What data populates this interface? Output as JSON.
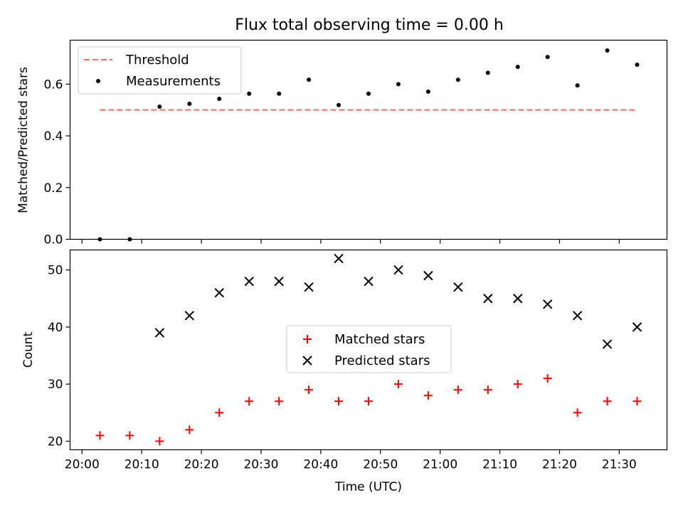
{
  "title": "Flux total observing time = 0.00 h",
  "chart_data": [
    {
      "type": "scatter",
      "ylabel": "Matched/Predicted stars",
      "xlabel": "",
      "ylim": [
        0.0,
        0.77
      ],
      "xlim": [
        "19:58",
        "21:38"
      ],
      "yticks": [
        "0.0",
        "0.2",
        "0.4",
        "0.6"
      ],
      "legend_position": "top-left",
      "threshold": {
        "name": "Threshold",
        "value": 0.5,
        "x_range": [
          "20:03",
          "21:33"
        ],
        "color": "#ff6666",
        "style": "dashed"
      },
      "series": [
        {
          "name": "Measurements",
          "color": "#000000",
          "marker": "dot",
          "x": [
            "20:03",
            "20:08",
            "20:13",
            "20:18",
            "20:23",
            "20:28",
            "20:33",
            "20:38",
            "20:43",
            "20:48",
            "20:53",
            "20:58",
            "21:03",
            "21:08",
            "21:13",
            "21:18",
            "21:23",
            "21:28",
            "21:33"
          ],
          "y": [
            0.0,
            0.0,
            0.513,
            0.524,
            0.543,
            0.563,
            0.563,
            0.617,
            0.519,
            0.563,
            0.6,
            0.571,
            0.617,
            0.644,
            0.667,
            0.705,
            0.595,
            0.73,
            0.675
          ]
        }
      ]
    },
    {
      "type": "scatter",
      "ylabel": "Count",
      "xlabel": "Time (UTC)",
      "ylim": [
        18.5,
        53.5
      ],
      "xlim": [
        "19:58",
        "21:38"
      ],
      "yticks": [
        "20",
        "30",
        "40",
        "50"
      ],
      "xticks": [
        "20:00",
        "20:10",
        "20:20",
        "20:30",
        "20:40",
        "20:50",
        "21:00",
        "21:10",
        "21:20",
        "21:30"
      ],
      "legend_position": "center",
      "series": [
        {
          "name": "Matched stars",
          "color": "#ff0000",
          "marker": "plus",
          "x": [
            "20:03",
            "20:08",
            "20:13",
            "20:18",
            "20:23",
            "20:28",
            "20:33",
            "20:38",
            "20:43",
            "20:48",
            "20:53",
            "20:58",
            "21:03",
            "21:08",
            "21:13",
            "21:18",
            "21:23",
            "21:28",
            "21:33"
          ],
          "y": [
            21,
            21,
            20,
            22,
            25,
            27,
            27,
            29,
            27,
            27,
            30,
            28,
            29,
            29,
            30,
            31,
            25,
            27,
            27
          ]
        },
        {
          "name": "Predicted stars",
          "color": "#000000",
          "marker": "x",
          "x": [
            "20:13",
            "20:18",
            "20:23",
            "20:28",
            "20:33",
            "20:38",
            "20:43",
            "20:48",
            "20:53",
            "20:58",
            "21:03",
            "21:08",
            "21:13",
            "21:18",
            "21:23",
            "21:28",
            "21:33"
          ],
          "y": [
            39,
            42,
            46,
            48,
            48,
            47,
            52,
            48,
            50,
            49,
            47,
            45,
            45,
            44,
            42,
            37,
            40
          ]
        }
      ]
    }
  ]
}
